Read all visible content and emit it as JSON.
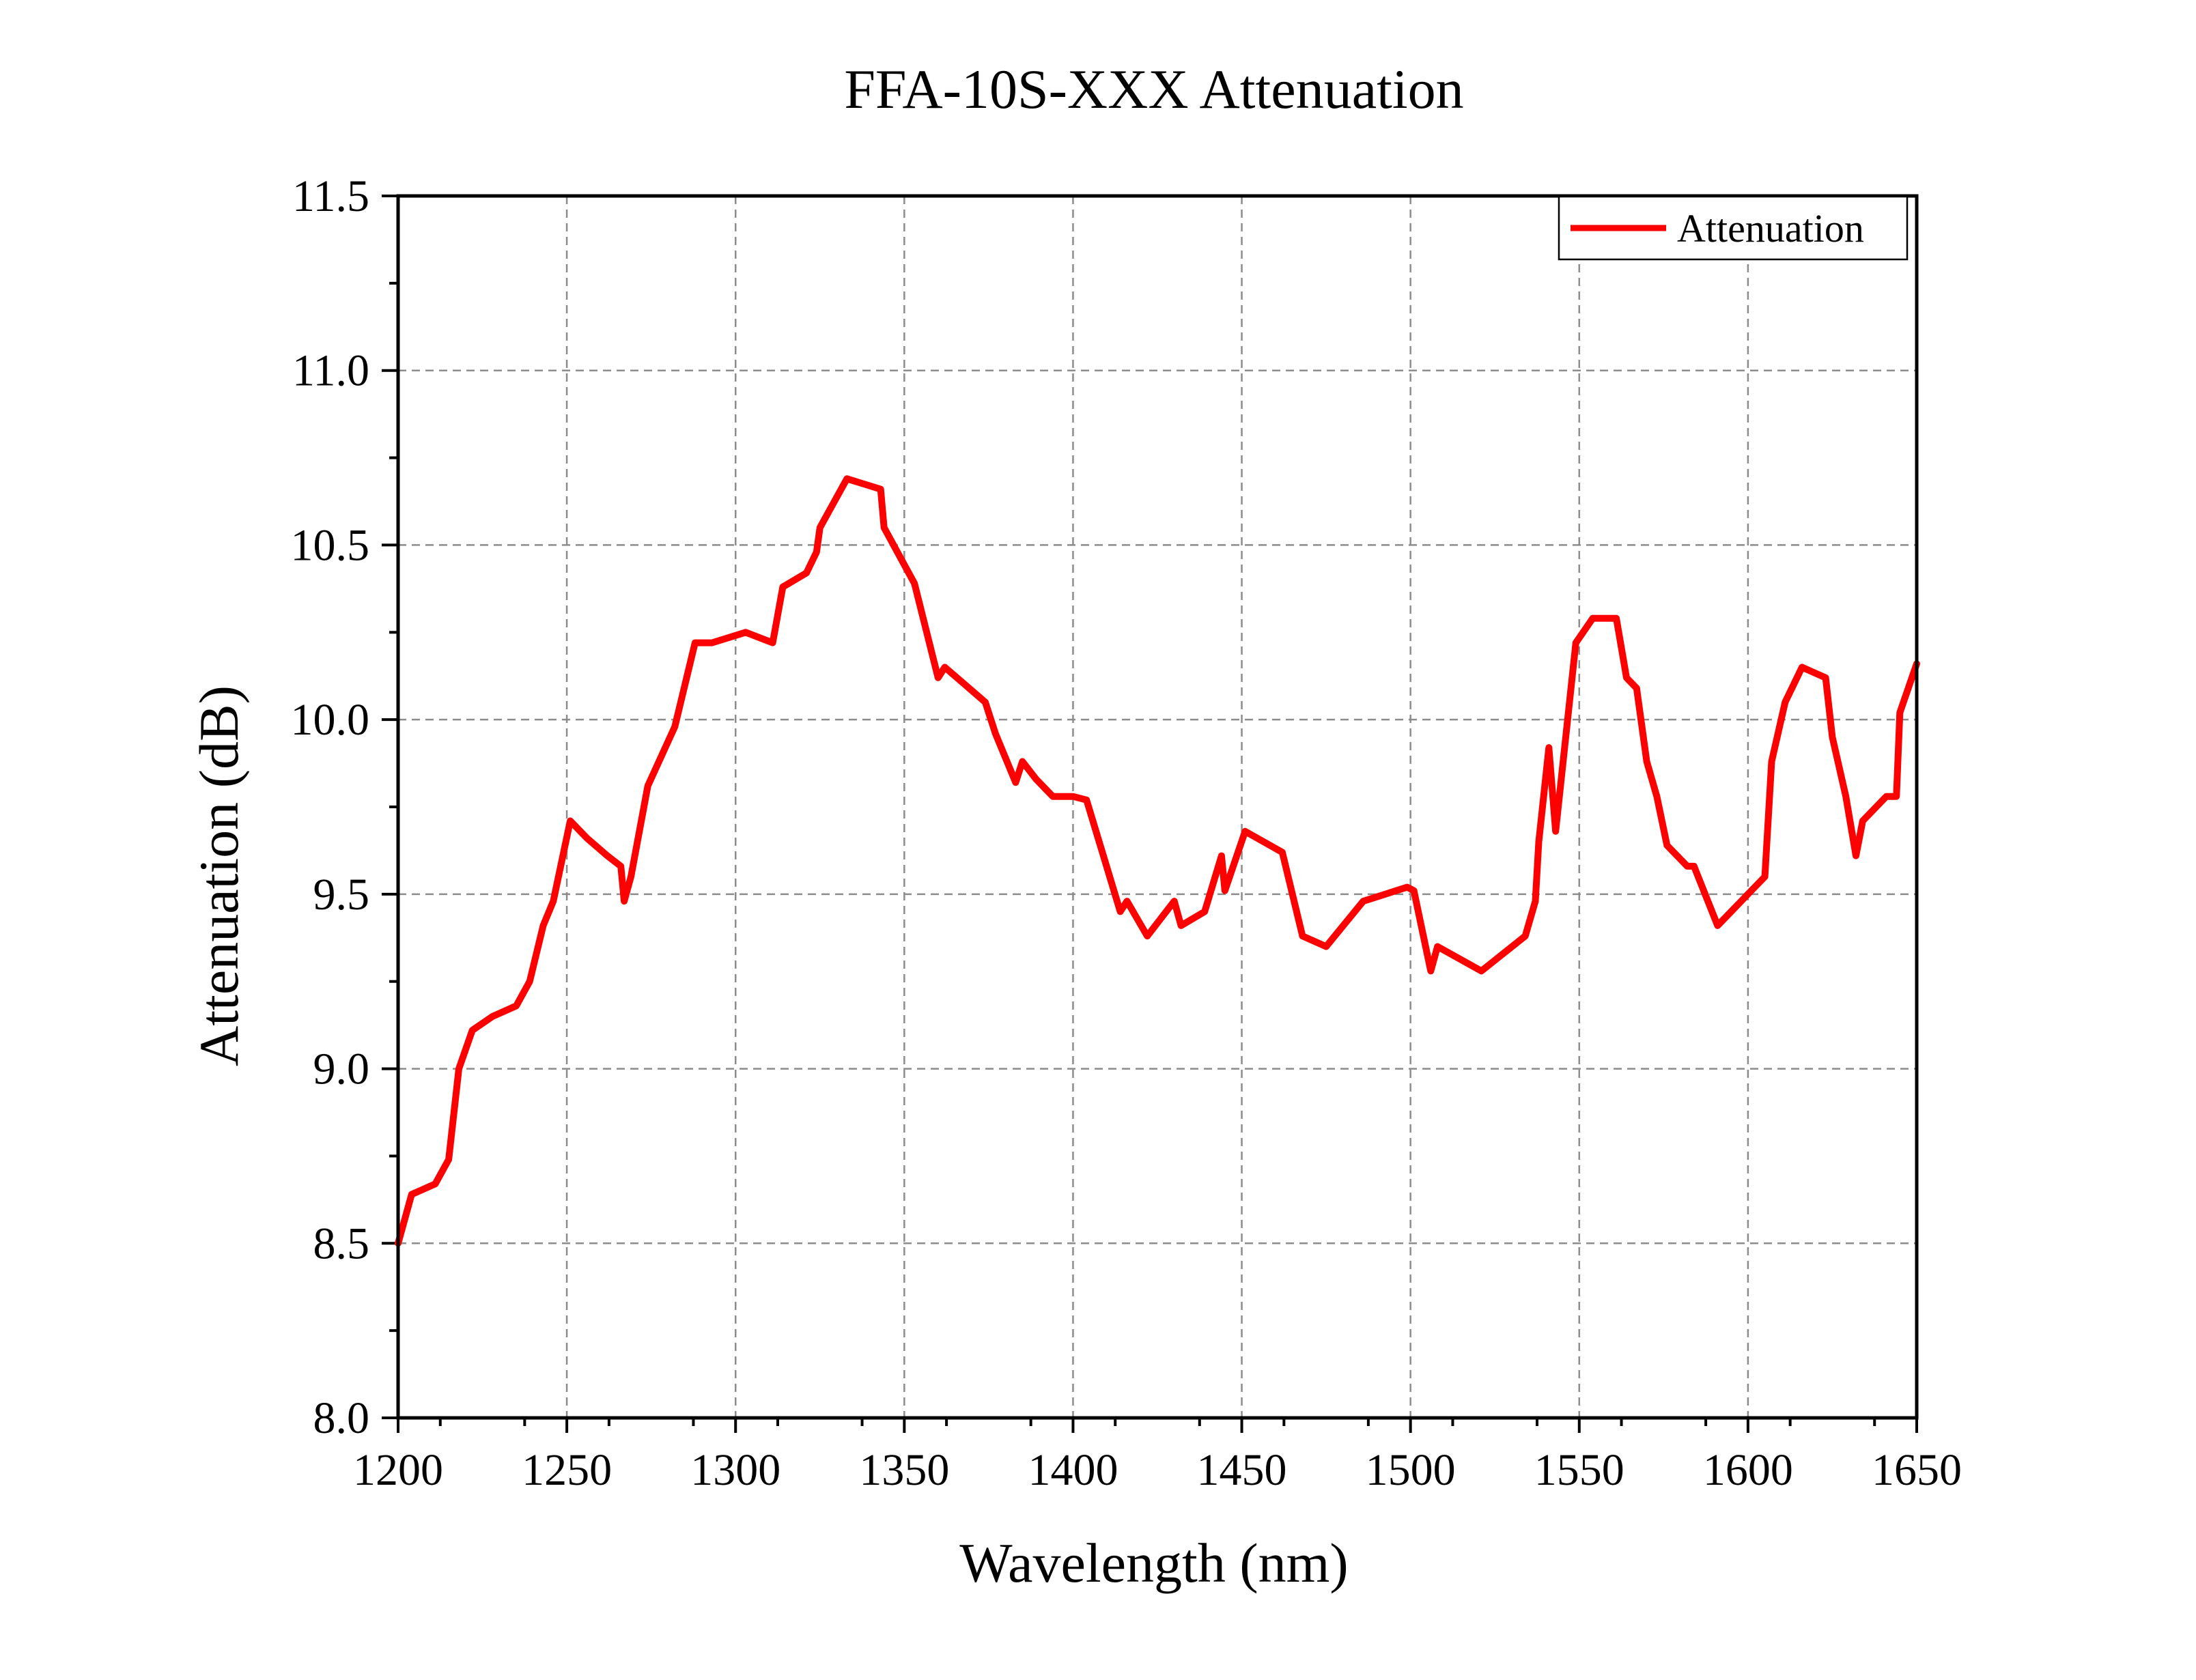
{
  "chart_data": {
    "type": "line",
    "title": "FFA-10S-XXX Attenuation",
    "xlabel": "Wavelength (nm)",
    "ylabel": "Attenuation (dB)",
    "xlim": [
      1200,
      1650
    ],
    "ylim": [
      8.0,
      11.5
    ],
    "xticks": [
      "1200",
      "1250",
      "1300",
      "1350",
      "1400",
      "1450",
      "1500",
      "1550",
      "1600",
      "1650"
    ],
    "yticks": [
      "8.0",
      "8.5",
      "9.0",
      "9.5",
      "10.0",
      "10.5",
      "11.0",
      "11.5"
    ],
    "grid": true,
    "legend_position": "top-right",
    "series": [
      {
        "name": "Attenuation",
        "color": "#ff0000",
        "x": [
          1200,
          1204,
          1211,
          1215,
          1218,
          1222,
          1228,
          1235,
          1239,
          1243,
          1246,
          1251,
          1256,
          1262,
          1266,
          1267,
          1269,
          1274,
          1282,
          1288,
          1293,
          1303,
          1311,
          1314,
          1321,
          1324,
          1325,
          1333,
          1343,
          1344,
          1353,
          1360,
          1362,
          1368,
          1374,
          1377,
          1383,
          1385,
          1389,
          1394,
          1400,
          1404,
          1414,
          1416,
          1422,
          1430,
          1432,
          1439,
          1444,
          1445,
          1451,
          1462,
          1468,
          1475,
          1486,
          1499,
          1501,
          1506,
          1508,
          1521,
          1534,
          1537,
          1538,
          1541,
          1543,
          1549,
          1554,
          1561,
          1564,
          1567,
          1570,
          1573,
          1576,
          1582,
          1584,
          1591,
          1601,
          1605,
          1607,
          1611,
          1616,
          1623,
          1625,
          1629,
          1632,
          1634,
          1641,
          1644,
          1645,
          1650
        ],
        "values": [
          8.5,
          8.64,
          8.67,
          8.74,
          9.0,
          9.11,
          9.15,
          9.18,
          9.25,
          9.41,
          9.48,
          9.71,
          9.66,
          9.61,
          9.58,
          9.48,
          9.55,
          9.81,
          9.98,
          10.22,
          10.22,
          10.25,
          10.22,
          10.38,
          10.42,
          10.48,
          10.55,
          10.69,
          10.66,
          10.55,
          10.39,
          10.12,
          10.15,
          10.1,
          10.05,
          9.96,
          9.82,
          9.88,
          9.83,
          9.78,
          9.78,
          9.77,
          9.45,
          9.48,
          9.38,
          9.48,
          9.41,
          9.45,
          9.61,
          9.51,
          9.68,
          9.62,
          9.38,
          9.35,
          9.48,
          9.52,
          9.51,
          9.28,
          9.35,
          9.28,
          9.38,
          9.48,
          9.65,
          9.92,
          9.68,
          10.22,
          10.29,
          10.29,
          10.12,
          10.09,
          9.88,
          9.78,
          9.64,
          9.58,
          9.58,
          9.41,
          9.51,
          9.55,
          9.88,
          10.05,
          10.15,
          10.12,
          9.95,
          9.78,
          9.61,
          9.71,
          9.78,
          9.78,
          10.02,
          10.16
        ]
      }
    ]
  }
}
